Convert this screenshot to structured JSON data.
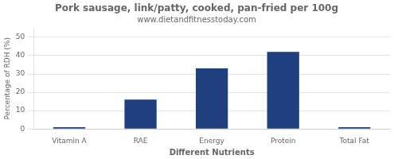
{
  "chart_data": {
    "type": "bar",
    "title": "Pork sausage, link/patty, cooked, pan-fried per 100g",
    "subtitle": "www.dietandfitnesstoday.com",
    "xlabel": "Different Nutrients",
    "ylabel": "Percentage of RDH (%)",
    "categories": [
      "Vitamin A",
      "RAE",
      "Energy",
      "Protein",
      "Total Fat"
    ],
    "values": [
      1,
      16,
      33,
      42,
      1
    ],
    "color": "#1F3F7F",
    "ylim": [
      0,
      55
    ],
    "yticks": [
      0,
      10,
      20,
      30,
      40,
      50
    ],
    "grid": true
  }
}
